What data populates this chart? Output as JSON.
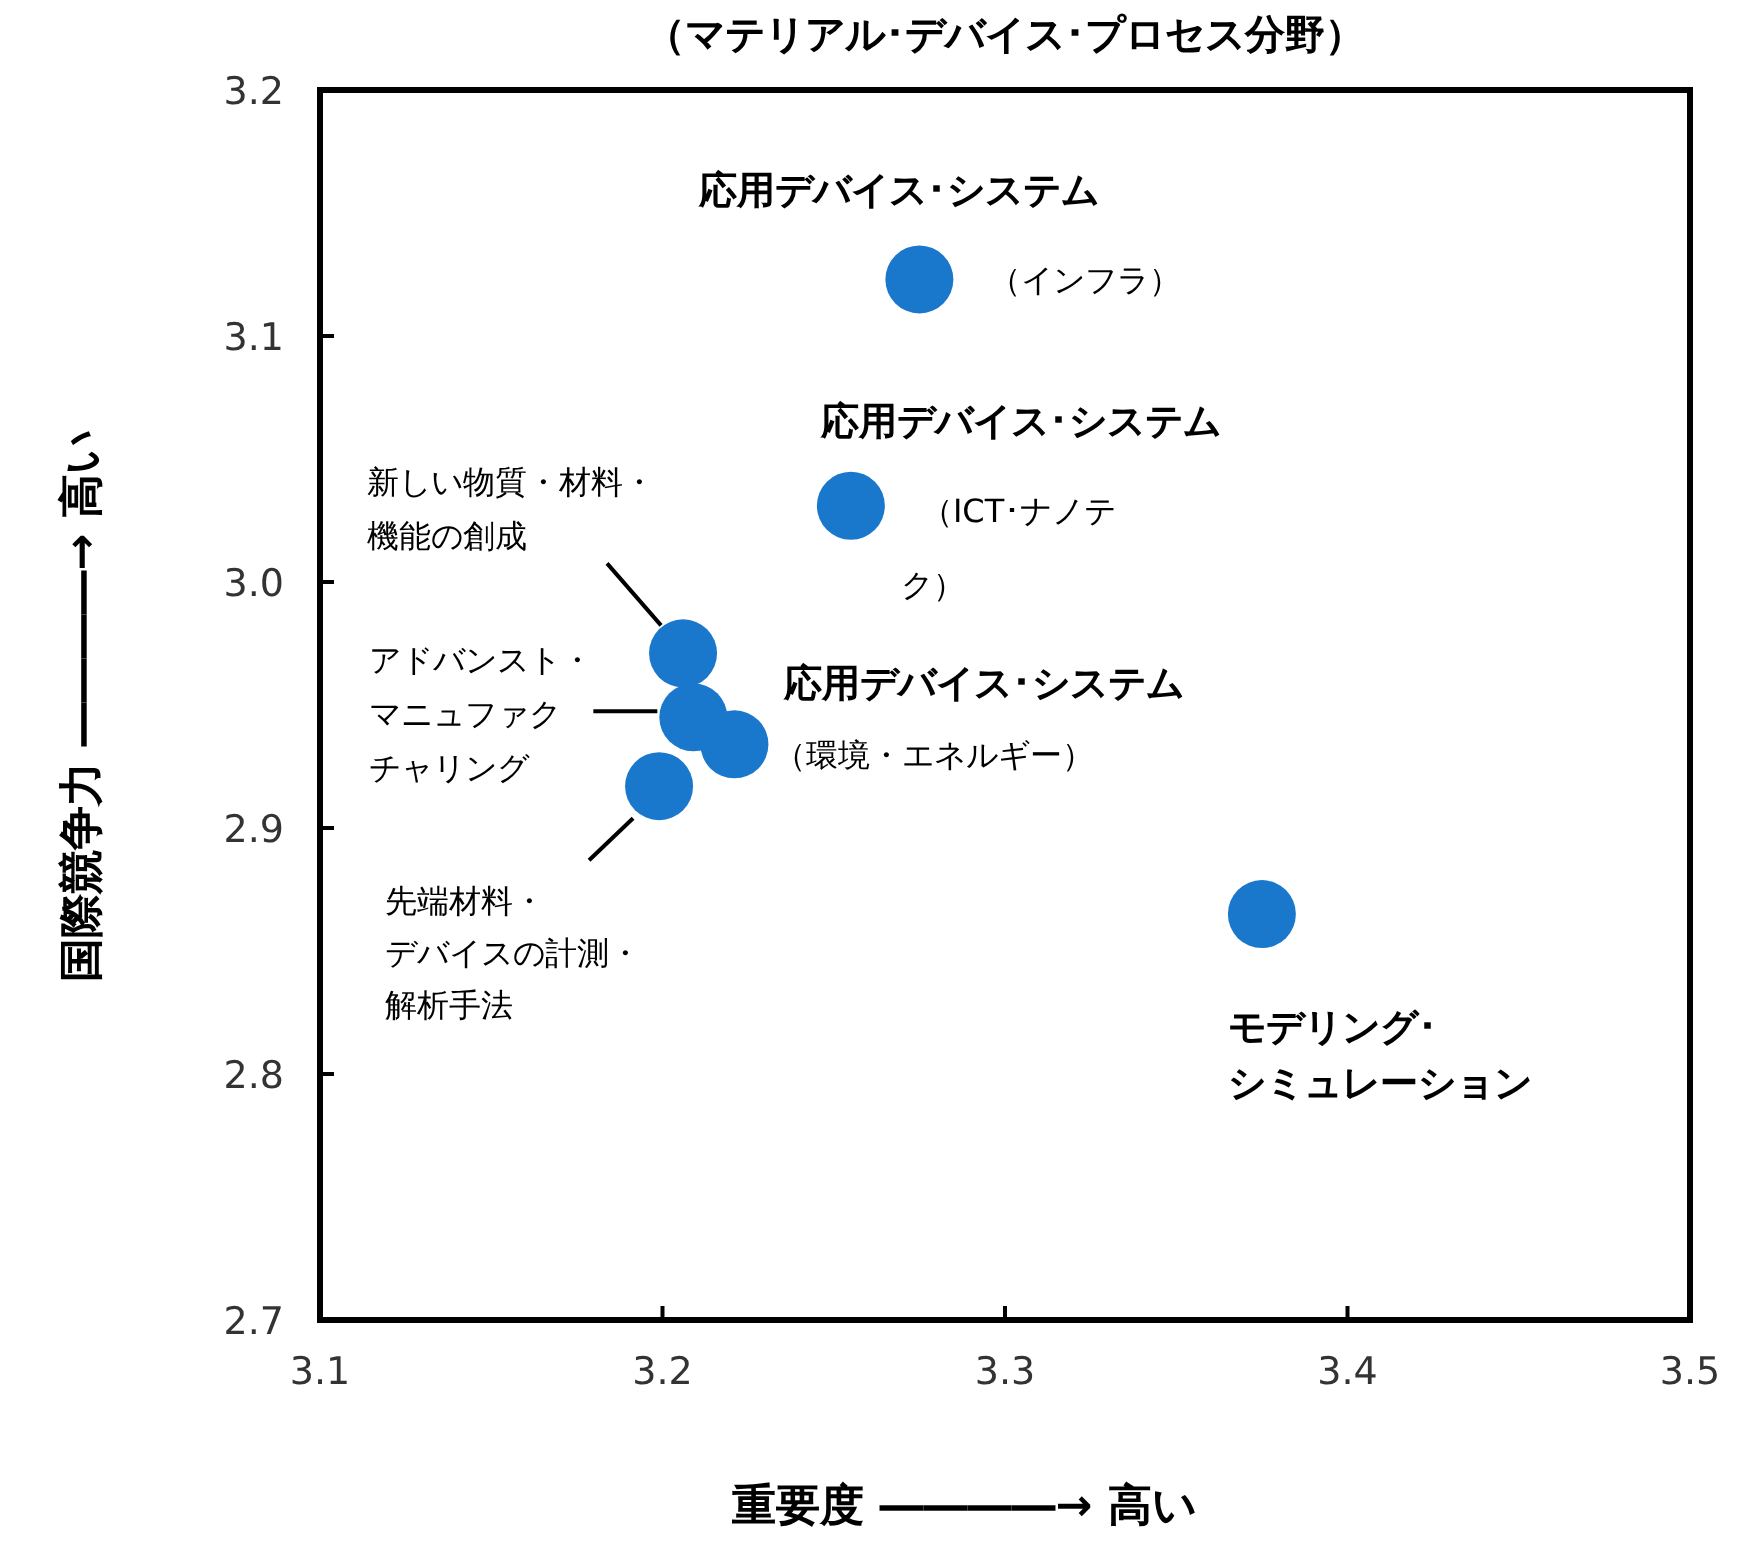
{
  "chart_data": {
    "type": "scatter",
    "title": "（マテリアル･デバイス･プロセス分野）",
    "xlabel": "重要度 ――――→ 高い",
    "ylabel": "国際競争力 ――――→ 高い",
    "x": [
      3.275,
      3.255,
      3.206,
      3.209,
      3.221,
      3.199,
      3.375
    ],
    "series": [
      {
        "color": "#1a78cc",
        "values": [
          3.123,
          3.031,
          2.971,
          2.945,
          2.934,
          2.917,
          2.865
        ]
      }
    ],
    "marker": "circle",
    "grid": false,
    "xlim": [
      3.1,
      3.5
    ],
    "ylim": [
      2.7,
      3.2
    ],
    "xticks": [
      {
        "value": 3.1,
        "label": "3.1"
      },
      {
        "value": 3.2,
        "label": "3.2"
      },
      {
        "value": 3.3,
        "label": "3.3"
      },
      {
        "value": 3.4,
        "label": "3.4"
      },
      {
        "value": 3.5,
        "label": "3.5"
      }
    ],
    "yticks": [
      {
        "value": 2.7,
        "label": "2.7"
      },
      {
        "value": 2.8,
        "label": "2.8"
      },
      {
        "value": 2.9,
        "label": "2.9"
      },
      {
        "value": 3.0,
        "label": "3.0"
      },
      {
        "value": 3.1,
        "label": "3.1"
      },
      {
        "value": 3.2,
        "label": "3.2"
      }
    ],
    "annotations": [
      {
        "text": "応用デバイス･システム",
        "x": 3.275,
        "y": 3.123
      },
      {
        "text": "（インフラ）",
        "x": 3.275,
        "y": 3.123
      },
      {
        "text": "応用デバイス･システム",
        "x": 3.255,
        "y": 3.031
      },
      {
        "text": "（ICT･ナノテク）",
        "x": 3.255,
        "y": 3.031
      },
      "新しい物質・材料・機能の創成",
      "アドバンスト・マニュファクチャリング",
      {
        "text": "応用デバイス･システム",
        "x": 3.221,
        "y": 2.934
      },
      {
        "text": "（環境・エネルギー）",
        "x": 3.221,
        "y": 2.934
      },
      "先端材料・デバイスの計測・解析手法",
      {
        "text": "モデリング･シミュレーション",
        "x": 3.375,
        "y": 2.865
      }
    ]
  }
}
